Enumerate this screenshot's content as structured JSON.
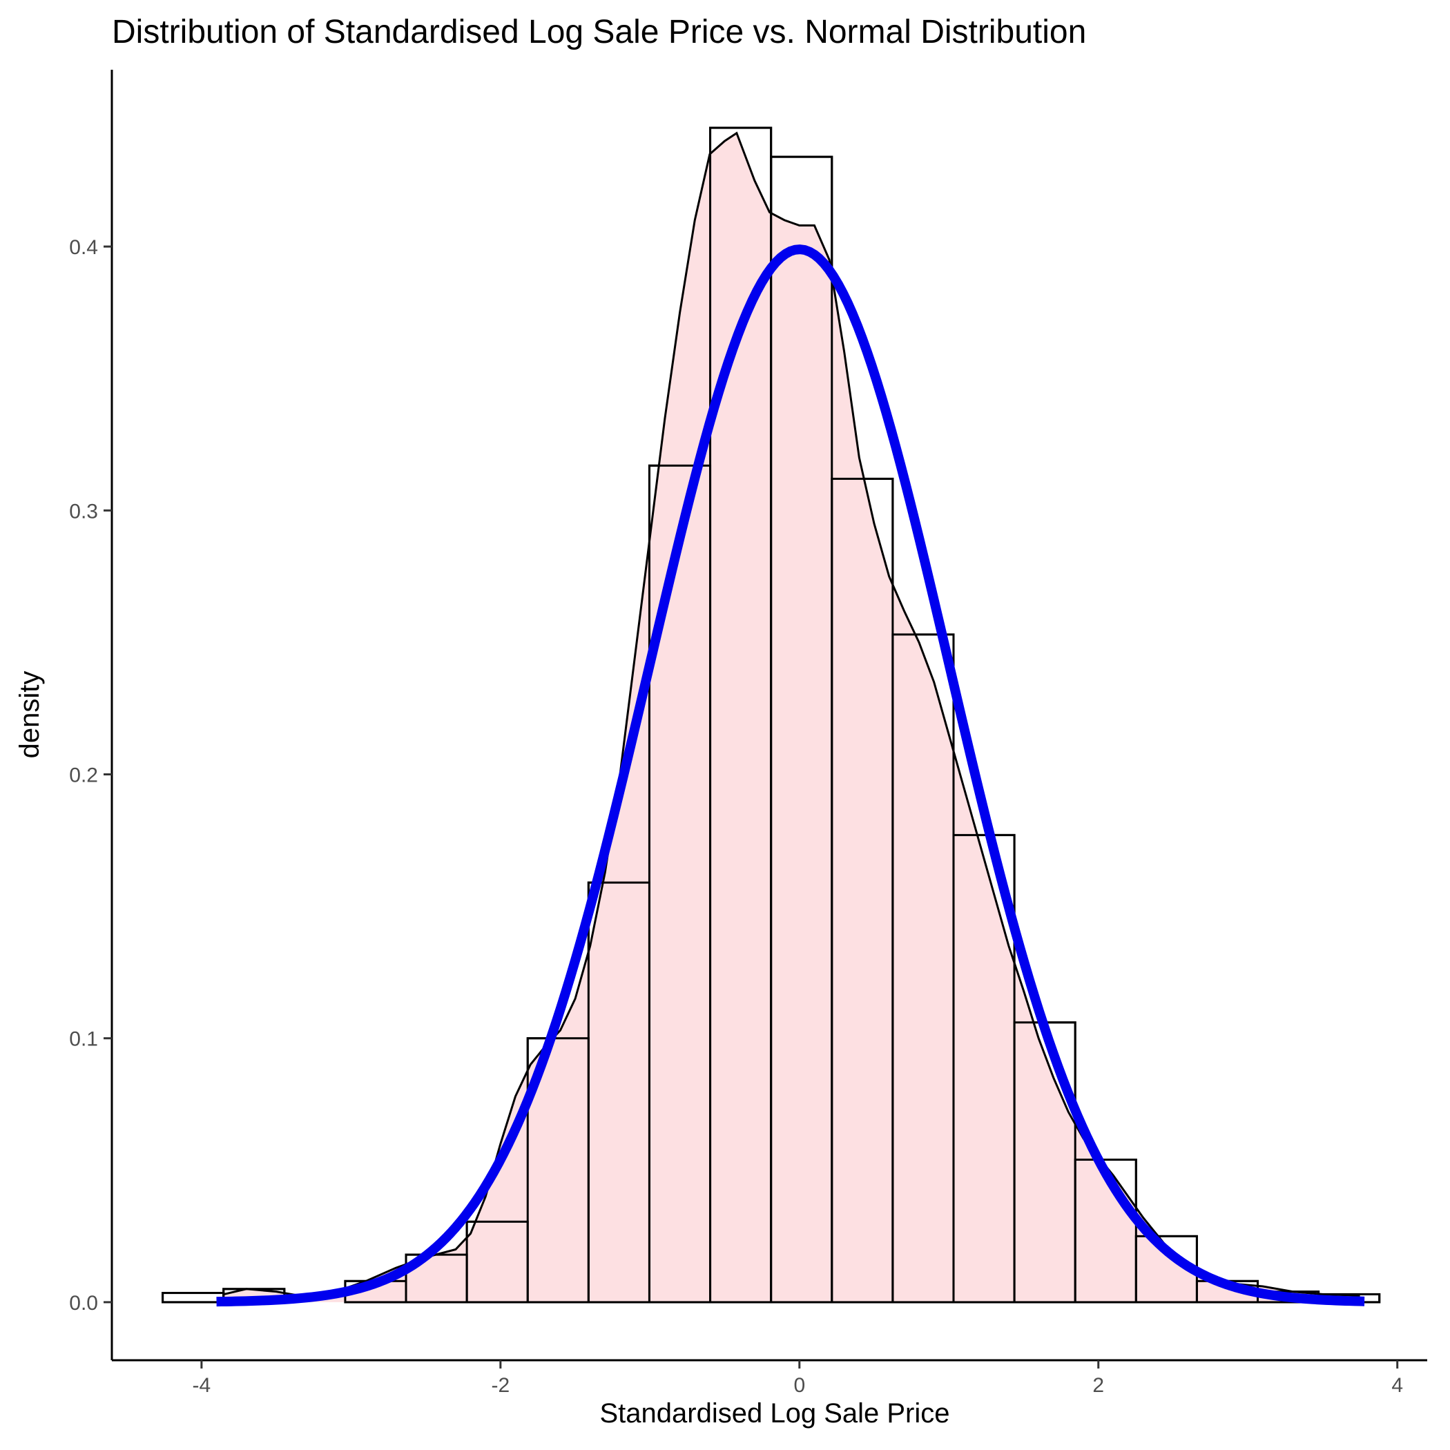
{
  "chart_data": {
    "type": "bar",
    "title": "Distribution of Standardised Log Sale Price vs. Normal Distribution",
    "xlabel": "Standardised Log Sale Price",
    "ylabel": "density",
    "xlim": [
      -4.6,
      4.2
    ],
    "ylim": [
      -0.022,
      0.467
    ],
    "x_ticks": [
      -4,
      -2,
      0,
      2,
      4
    ],
    "y_ticks": [
      0.0,
      0.1,
      0.2,
      0.3,
      0.4
    ],
    "grid": false,
    "legend": "none",
    "bin_width": 0.407,
    "histogram": {
      "bin_starts": [
        -4.26,
        -3.853,
        -3.446,
        -3.039,
        -2.632,
        -2.225,
        -1.818,
        -1.411,
        -1.004,
        -0.597,
        -0.19,
        0.217,
        0.624,
        1.031,
        1.438,
        1.845,
        2.252,
        2.659,
        3.066,
        3.473
      ],
      "values": [
        0.0035,
        0.005,
        0.0,
        0.008,
        0.018,
        0.0305,
        0.1,
        0.159,
        0.317,
        0.445,
        0.434,
        0.312,
        0.253,
        0.177,
        0.106,
        0.054,
        0.025,
        0.008,
        0.004,
        0.003
      ],
      "fill": "#fde0e2",
      "stroke": "#000000"
    },
    "density_curve": {
      "x": [
        -3.85,
        -3.7,
        -3.5,
        -3.3,
        -3.1,
        -2.9,
        -2.7,
        -2.5,
        -2.3,
        -2.2,
        -2.1,
        -2.0,
        -1.9,
        -1.8,
        -1.7,
        -1.6,
        -1.5,
        -1.4,
        -1.3,
        -1.2,
        -1.1,
        -1.0,
        -0.9,
        -0.8,
        -0.7,
        -0.6,
        -0.5,
        -0.42,
        -0.3,
        -0.2,
        -0.1,
        0.0,
        0.1,
        0.2,
        0.3,
        0.4,
        0.5,
        0.6,
        0.7,
        0.8,
        0.9,
        1.0,
        1.1,
        1.2,
        1.3,
        1.4,
        1.5,
        1.6,
        1.7,
        1.8,
        1.9,
        2.0,
        2.1,
        2.2,
        2.3,
        2.4,
        2.5,
        2.6,
        2.7,
        2.9,
        3.1,
        3.3,
        3.5,
        3.75
      ],
      "y": [
        0.003,
        0.005,
        0.004,
        0.002,
        0.004,
        0.008,
        0.013,
        0.017,
        0.02,
        0.026,
        0.04,
        0.06,
        0.078,
        0.09,
        0.097,
        0.103,
        0.115,
        0.135,
        0.163,
        0.2,
        0.245,
        0.29,
        0.335,
        0.375,
        0.41,
        0.435,
        0.44,
        0.443,
        0.425,
        0.413,
        0.41,
        0.408,
        0.408,
        0.395,
        0.36,
        0.32,
        0.295,
        0.275,
        0.262,
        0.25,
        0.235,
        0.215,
        0.195,
        0.175,
        0.155,
        0.135,
        0.118,
        0.1,
        0.085,
        0.072,
        0.062,
        0.055,
        0.048,
        0.04,
        0.032,
        0.025,
        0.018,
        0.013,
        0.009,
        0.007,
        0.006,
        0.004,
        0.003,
        0.0025
      ],
      "color": "#000000"
    },
    "normal_curve": {
      "x_range": [
        -3.9,
        3.78
      ],
      "mean": 0,
      "sd": 1,
      "color": "#0000ee"
    }
  }
}
